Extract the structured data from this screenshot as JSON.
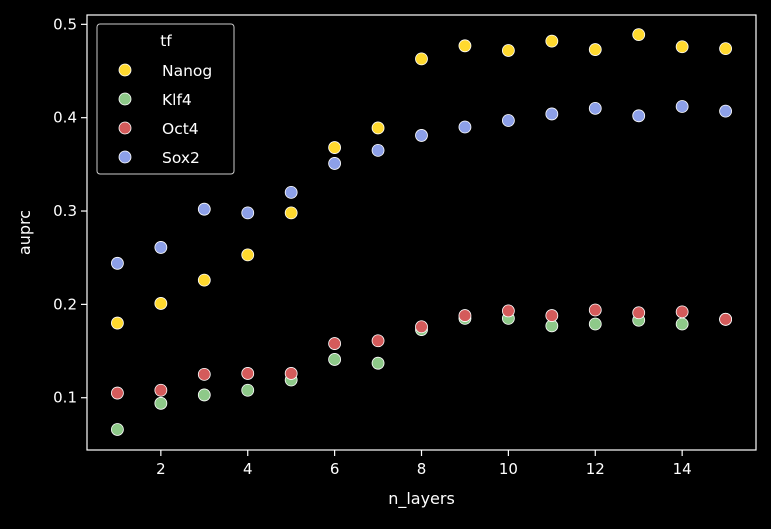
{
  "chart_data": {
    "type": "scatter",
    "title": "",
    "xlabel": "n_layers",
    "ylabel": "auprc",
    "xlim": [
      0.3,
      15.7
    ],
    "ylim": [
      0.044,
      0.51
    ],
    "xticks": [
      2,
      4,
      6,
      8,
      10,
      12,
      14
    ],
    "xtick_labels": [
      "2",
      "4",
      "6",
      "8",
      "10",
      "12",
      "14"
    ],
    "yticks": [
      0.1,
      0.2,
      0.3,
      0.4,
      0.5
    ],
    "ytick_labels": [
      "0.1",
      "0.2",
      "0.3",
      "0.4",
      "0.5"
    ],
    "grid": false,
    "legend": {
      "title": "tf",
      "placement": "top-left"
    },
    "background": "#000000",
    "x": [
      1,
      2,
      3,
      4,
      5,
      6,
      7,
      8,
      9,
      10,
      11,
      12,
      13,
      14,
      15
    ],
    "series": [
      {
        "name": "Nanog",
        "color": "#ffd92f",
        "values": [
          0.18,
          0.201,
          0.226,
          0.253,
          0.298,
          0.368,
          0.389,
          0.463,
          0.477,
          0.472,
          0.482,
          0.473,
          0.489,
          0.476,
          0.474
        ]
      },
      {
        "name": "Klf4",
        "color": "#8ec989",
        "values": [
          0.066,
          0.094,
          0.103,
          0.108,
          0.119,
          0.141,
          0.137,
          0.173,
          0.185,
          0.185,
          0.177,
          0.179,
          0.183,
          0.179,
          0.184
        ]
      },
      {
        "name": "Oct4",
        "color": "#d45b5b",
        "values": [
          0.105,
          0.108,
          0.125,
          0.126,
          0.126,
          0.158,
          0.161,
          0.176,
          0.188,
          0.193,
          0.188,
          0.194,
          0.191,
          0.192,
          0.184
        ]
      },
      {
        "name": "Sox2",
        "color": "#8da0e8",
        "values": [
          0.244,
          0.261,
          0.302,
          0.298,
          0.32,
          0.351,
          0.365,
          0.381,
          0.39,
          0.397,
          0.404,
          0.41,
          0.402,
          0.412,
          0.407
        ]
      }
    ]
  }
}
